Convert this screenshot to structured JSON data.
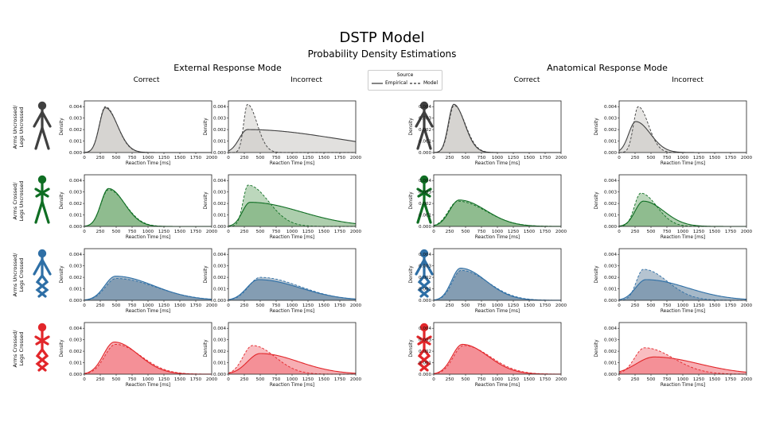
{
  "title": "DSTP Model",
  "subtitle": "Probability Density Estimations",
  "modes": [
    "External Response Mode",
    "Anatomical Response Mode"
  ],
  "columns": [
    "Correct",
    "Incorrect",
    "Correct",
    "Incorrect"
  ],
  "legend": {
    "title": "Source",
    "items": [
      "Empirical",
      "Model"
    ]
  },
  "conditions": [
    {
      "label": [
        "Arms Uncrossed/",
        "Legs Uncrossed"
      ],
      "color": "#404040",
      "fill": "#c8c6c2"
    },
    {
      "label": [
        "Arms Crossed/",
        "Legs Uncrossed"
      ],
      "color": "#0f6e23",
      "fill": "#6aa66a"
    },
    {
      "label": [
        "Arms Uncrossed/",
        "Legs Crossed"
      ],
      "color": "#2e6fa6",
      "fill": "#5b7d9a"
    },
    {
      "label": [
        "Arms Crossed/",
        "Legs Crossed"
      ],
      "color": "#e2262a",
      "fill": "#f16c75"
    }
  ],
  "chart_data": {
    "type": "area",
    "xlabel": "Reaction Time [ms]",
    "ylabel": "Density",
    "xlim": [
      0,
      2000
    ],
    "ylim": [
      0,
      0.0045
    ],
    "xticks": [
      0,
      250,
      500,
      750,
      1000,
      1250,
      1500,
      1750,
      2000
    ],
    "yticks": [
      "0.000",
      "0.001",
      "0.002",
      "0.003",
      "0.004"
    ],
    "panels": [
      [
        {
          "empirical": {
            "peak": 330,
            "height": 0.0039,
            "left": 95,
            "right": 190
          },
          "model": {
            "peak": 330,
            "height": 0.004,
            "left": 95,
            "right": 185
          }
        },
        {
          "empirical": {
            "peak": 300,
            "height": 0.002,
            "left": 130,
            "right": 1400
          },
          "model": {
            "peak": 300,
            "height": 0.0042,
            "left": 60,
            "right": 150
          }
        },
        {
          "empirical": {
            "peak": 315,
            "height": 0.0042,
            "left": 85,
            "right": 170
          },
          "model": {
            "peak": 320,
            "height": 0.0041,
            "left": 85,
            "right": 175
          }
        },
        {
          "empirical": {
            "peak": 260,
            "height": 0.0027,
            "left": 110,
            "right": 230
          },
          "model": {
            "peak": 300,
            "height": 0.004,
            "left": 75,
            "right": 160
          }
        }
      ],
      [
        {
          "empirical": {
            "peak": 380,
            "height": 0.0033,
            "left": 120,
            "right": 250
          },
          "model": {
            "peak": 380,
            "height": 0.0032,
            "left": 120,
            "right": 260
          }
        },
        {
          "empirical": {
            "peak": 340,
            "height": 0.0021,
            "left": 120,
            "right": 800
          },
          "model": {
            "peak": 310,
            "height": 0.0036,
            "left": 80,
            "right": 320
          }
        },
        {
          "empirical": {
            "peak": 400,
            "height": 0.0023,
            "left": 150,
            "right": 420
          },
          "model": {
            "peak": 380,
            "height": 0.0022,
            "left": 150,
            "right": 440
          }
        },
        {
          "empirical": {
            "peak": 380,
            "height": 0.0022,
            "left": 130,
            "right": 320
          },
          "model": {
            "peak": 340,
            "height": 0.0029,
            "left": 100,
            "right": 250
          }
        }
      ],
      [
        {
          "empirical": {
            "peak": 490,
            "height": 0.0021,
            "left": 170,
            "right": 600
          },
          "model": {
            "peak": 500,
            "height": 0.0019,
            "left": 170,
            "right": 620
          }
        },
        {
          "empirical": {
            "peak": 470,
            "height": 0.0018,
            "left": 180,
            "right": 650
          },
          "model": {
            "peak": 500,
            "height": 0.002,
            "left": 180,
            "right": 620
          }
        },
        {
          "empirical": {
            "peak": 420,
            "height": 0.0028,
            "left": 140,
            "right": 400
          },
          "model": {
            "peak": 430,
            "height": 0.0026,
            "left": 140,
            "right": 420
          }
        },
        {
          "empirical": {
            "peak": 420,
            "height": 0.0018,
            "left": 160,
            "right": 650
          },
          "model": {
            "peak": 380,
            "height": 0.0027,
            "left": 110,
            "right": 380
          }
        }
      ],
      [
        {
          "empirical": {
            "peak": 470,
            "height": 0.0028,
            "left": 170,
            "right": 380
          },
          "model": {
            "peak": 490,
            "height": 0.0026,
            "left": 170,
            "right": 400
          }
        },
        {
          "empirical": {
            "peak": 500,
            "height": 0.0018,
            "left": 200,
            "right": 600
          },
          "model": {
            "peak": 380,
            "height": 0.0025,
            "left": 150,
            "right": 350
          }
        },
        {
          "empirical": {
            "peak": 450,
            "height": 0.0026,
            "left": 160,
            "right": 400
          },
          "model": {
            "peak": 470,
            "height": 0.0025,
            "left": 160,
            "right": 420
          }
        },
        {
          "empirical": {
            "peak": 550,
            "height": 0.0015,
            "left": 280,
            "right": 700
          },
          "model": {
            "peak": 400,
            "height": 0.0023,
            "left": 160,
            "right": 450
          }
        }
      ]
    ]
  }
}
